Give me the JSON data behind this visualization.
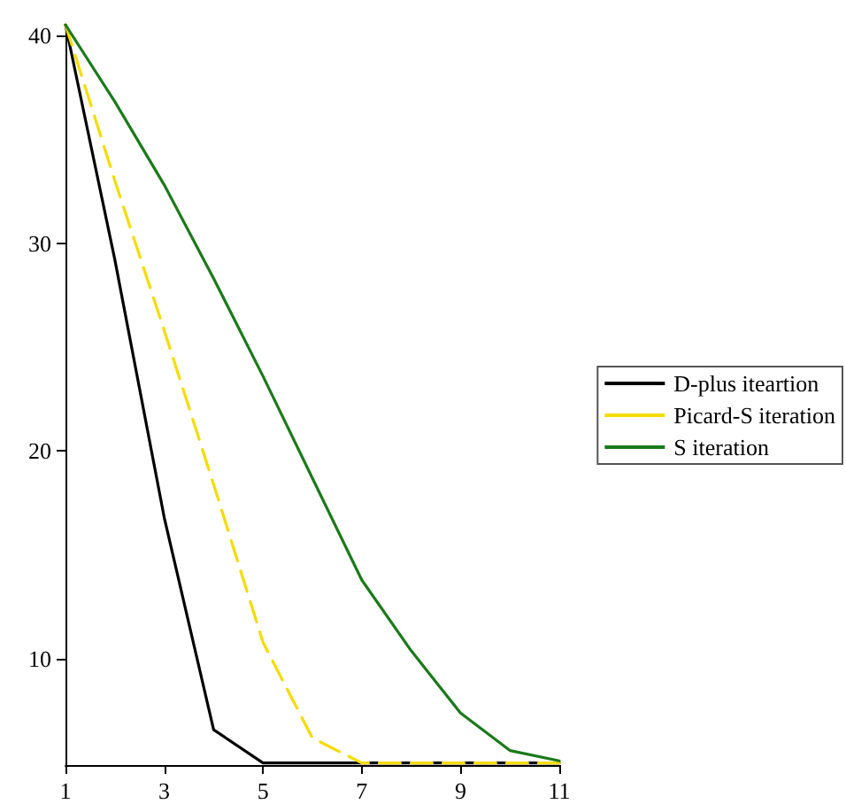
{
  "chart_data": {
    "type": "line",
    "x": [
      1,
      2,
      3,
      4,
      5,
      6,
      7,
      8,
      9,
      10,
      11
    ],
    "series": [
      {
        "name": "D-plus iteartion",
        "color": "#000000",
        "line_style": "solid",
        "values": [
          40.5,
          29.2,
          16.8,
          6.6,
          5.0,
          5.0,
          5.0,
          5.0,
          5.0,
          5.0,
          5.0
        ]
      },
      {
        "name": "Picard-S iteration",
        "color": "#f5dc00",
        "line_style": "dashed",
        "values": [
          40.5,
          33.0,
          25.8,
          18.4,
          10.8,
          6.2,
          5.0,
          5.0,
          5.0,
          5.0,
          5.0
        ]
      },
      {
        "name": "S iteration",
        "color": "#1a7a1a",
        "line_style": "solid",
        "values": [
          40.5,
          36.8,
          32.8,
          28.3,
          23.6,
          18.7,
          13.8,
          10.4,
          7.4,
          5.6,
          5.1
        ]
      }
    ],
    "xlim": [
      1,
      11
    ],
    "xticks": [
      1,
      3,
      5,
      7,
      9,
      11
    ],
    "ylim": [
      4.9,
      40.5
    ],
    "yticks": [
      10,
      20,
      30,
      40
    ],
    "grid": false,
    "legend": "right",
    "marker": "none"
  }
}
